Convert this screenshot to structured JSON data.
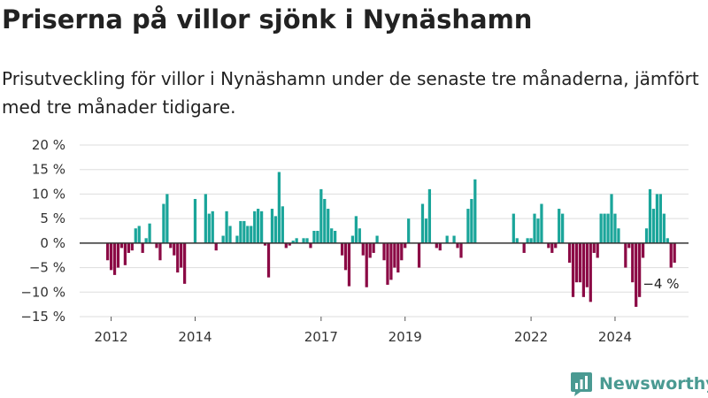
{
  "title": "Priserna på villor sjönk i Nynäshamn",
  "subtitle": "Prisutveckling för villor i Nynäshamn under de senaste tre månaderna, jämfört med tre månader tidigare.",
  "brand": {
    "name": "Newsworthy"
  },
  "colors": {
    "positive": "#1aa59a",
    "negative": "#8b0a45",
    "grid": "#dddddd",
    "zero_line": "#333333"
  },
  "chart_data": {
    "type": "bar",
    "unit": "%",
    "ylim": [
      -15,
      20
    ],
    "yticks": [
      {
        "value": 20,
        "label": "20 %"
      },
      {
        "value": 15,
        "label": "15 %"
      },
      {
        "value": 10,
        "label": "10 %"
      },
      {
        "value": 5,
        "label": "5 %"
      },
      {
        "value": 0,
        "label": "0 %"
      },
      {
        "value": -5,
        "label": "−5 %"
      },
      {
        "value": -10,
        "label": "−10 %"
      },
      {
        "value": -15,
        "label": "−15 %"
      }
    ],
    "xlim": [
      2011.25,
      2025.75
    ],
    "xticks": [
      {
        "value": 2012,
        "label": "2012"
      },
      {
        "value": 2014,
        "label": "2014"
      },
      {
        "value": 2017,
        "label": "2017"
      },
      {
        "value": 2019,
        "label": "2019"
      },
      {
        "value": 2022,
        "label": "2022"
      },
      {
        "value": 2024,
        "label": "2024"
      }
    ],
    "grid": true,
    "x_start": "2011-12",
    "frequency": "monthly",
    "values": [
      -3.5,
      -5.5,
      -6.5,
      -5,
      -1,
      -4.5,
      -2,
      -1.5,
      3,
      3.5,
      -2,
      1,
      4,
      0,
      -1,
      -3.5,
      8,
      10,
      -1,
      -2.5,
      -6,
      -5,
      -8.3,
      0,
      0,
      9,
      0,
      0,
      10,
      6,
      6.5,
      -1.5,
      0,
      1.5,
      6.5,
      3.5,
      0,
      1.5,
      4.5,
      4.5,
      3.5,
      3.5,
      6.5,
      7,
      6.5,
      -0.5,
      -7,
      7,
      5.5,
      14.5,
      7.5,
      -1,
      -0.5,
      0.5,
      1,
      0,
      1,
      1,
      -1,
      2.5,
      2.5,
      11,
      9,
      7,
      3,
      2.5,
      0,
      -2.5,
      -5.5,
      -8.8,
      1.5,
      5.5,
      3,
      -2.5,
      -9,
      -3,
      -2,
      1.5,
      0,
      -3.5,
      -8.5,
      -7.5,
      -5,
      -6,
      -3.5,
      -1,
      5,
      0,
      0,
      -5,
      8,
      5,
      11,
      0,
      -1,
      -1.5,
      0,
      1.5,
      0,
      1.5,
      -1,
      -3,
      0,
      7,
      9,
      13,
      0,
      0,
      0,
      0,
      0,
      0,
      0,
      0,
      0,
      0,
      6,
      1,
      0,
      -2,
      1,
      1,
      6,
      5,
      8,
      0,
      -1,
      -2,
      -1,
      7,
      6,
      0,
      -4,
      -11,
      -8,
      -8,
      -11,
      -9,
      -12,
      -2,
      -3,
      6,
      6,
      6,
      10,
      6,
      3,
      0,
      -5,
      -1,
      -8,
      -13,
      -11,
      -3,
      3,
      11,
      7,
      10,
      10,
      6,
      1,
      -5,
      -4
    ],
    "annotations": [
      {
        "x": "2025-02",
        "y": -4,
        "text": "−4 %"
      }
    ]
  }
}
